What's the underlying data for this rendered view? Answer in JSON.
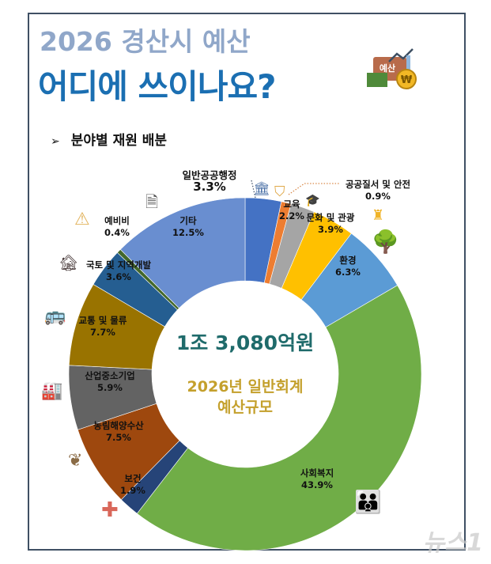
{
  "header": {
    "title_line1": "2026 경산시 예산",
    "title_line2": "어디에 쓰이나요?",
    "badge_text": "예산",
    "section_title": "분야별 재원 배분"
  },
  "center": {
    "total": "1조 3,080억원",
    "caption_line1": "2026년 일반회계",
    "caption_line2": "예산규모"
  },
  "watermark": "뉴스1",
  "chart_data": {
    "type": "pie",
    "donut": true,
    "start": "top, clockwise",
    "unit": "%",
    "categories": [
      "일반공공행정",
      "공공질서 및 안전",
      "교육",
      "문화 및 관광",
      "환경",
      "사회복지",
      "보건",
      "농림해양수산",
      "산업중소기업",
      "교통 및 물류",
      "국토 및 지역개발",
      "예비비",
      "기타"
    ],
    "values": [
      3.3,
      0.9,
      2.2,
      3.9,
      6.3,
      43.9,
      1.9,
      7.5,
      5.9,
      7.7,
      3.6,
      0.4,
      12.5
    ],
    "labels": [
      "3.3%",
      "0.9%",
      "2.2%",
      "3.9%",
      "6.3%",
      "43.9%",
      "1.9%",
      "7.5%",
      "5.9%",
      "7.7%",
      "3.6%",
      "0.4%",
      "12.5%"
    ],
    "colors": [
      "#4472c4",
      "#ed7d31",
      "#a5a5a5",
      "#ffc000",
      "#5b9bd5",
      "#70ad47",
      "#264478",
      "#9e480e",
      "#636363",
      "#997300",
      "#255e91",
      "#43682b",
      "#698ed0"
    ],
    "icons": [
      "bank-icon",
      "shield-icon",
      "graduation-cap-icon",
      "pagoda-icon",
      "tree-icon",
      "family-icon",
      "medical-cross-icon",
      "sprout-icon",
      "factory-icon",
      "bus-icon",
      "building-icon",
      "warning-icon",
      "document-icon"
    ]
  }
}
